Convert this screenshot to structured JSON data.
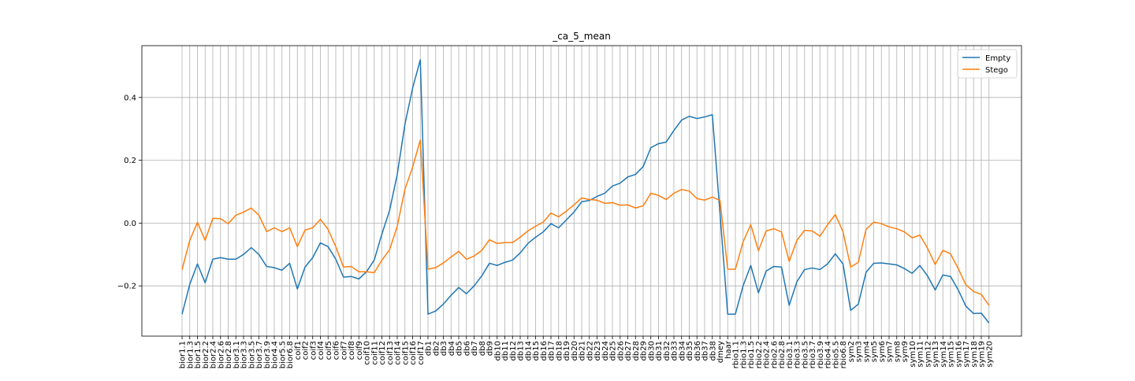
{
  "chart_data": {
    "type": "line",
    "title": "_ca_5_mean",
    "xlabel": "",
    "ylabel": "",
    "ylim": [
      -0.36,
      0.565
    ],
    "yticks": [
      -0.2,
      0.0,
      0.2,
      0.4
    ],
    "ytick_labels": [
      "−0.2",
      "0.0",
      "0.2",
      "0.4"
    ],
    "grid": true,
    "legend_position": "top-right",
    "categories": [
      "bior1.1",
      "bior1.3",
      "bior1.5",
      "bior2.2",
      "bior2.4",
      "bior2.6",
      "bior2.8",
      "bior3.1",
      "bior3.3",
      "bior3.5",
      "bior3.7",
      "bior3.9",
      "bior4.4",
      "bior5.5",
      "bior6.8",
      "coif1",
      "coif2",
      "coif3",
      "coif4",
      "coif5",
      "coif6",
      "coif7",
      "coif8",
      "coif9",
      "coif10",
      "coif11",
      "coif12",
      "coif13",
      "coif14",
      "coif15",
      "coif16",
      "coif17",
      "db1",
      "db2",
      "db3",
      "db4",
      "db5",
      "db6",
      "db7",
      "db8",
      "db9",
      "db10",
      "db11",
      "db12",
      "db13",
      "db14",
      "db15",
      "db16",
      "db17",
      "db18",
      "db19",
      "db20",
      "db21",
      "db22",
      "db23",
      "db24",
      "db25",
      "db26",
      "db27",
      "db28",
      "db29",
      "db30",
      "db31",
      "db32",
      "db33",
      "db34",
      "db35",
      "db36",
      "db37",
      "db38",
      "dmey",
      "haar",
      "rbio1.1",
      "rbio1.3",
      "rbio1.5",
      "rbio2.2",
      "rbio2.4",
      "rbio2.6",
      "rbio2.8",
      "rbio3.1",
      "rbio3.3",
      "rbio3.5",
      "rbio3.7",
      "rbio3.9",
      "rbio4.4",
      "rbio5.5",
      "rbio6.8",
      "sym2",
      "sym3",
      "sym4",
      "sym5",
      "sym6",
      "sym7",
      "sym8",
      "sym9",
      "sym10",
      "sym11",
      "sym12",
      "sym13",
      "sym14",
      "sym15",
      "sym16",
      "sym17",
      "sym18",
      "sym19",
      "sym20"
    ],
    "series": [
      {
        "name": "Empty",
        "color": "#1f77b4",
        "values": [
          -0.29,
          -0.195,
          -0.13,
          -0.19,
          -0.115,
          -0.11,
          -0.115,
          -0.115,
          -0.1,
          -0.078,
          -0.1,
          -0.138,
          -0.142,
          -0.15,
          -0.128,
          -0.21,
          -0.14,
          -0.11,
          -0.063,
          -0.075,
          -0.115,
          -0.172,
          -0.17,
          -0.178,
          -0.155,
          -0.118,
          -0.035,
          0.04,
          0.155,
          0.315,
          0.43,
          0.52,
          -0.29,
          -0.28,
          -0.258,
          -0.23,
          -0.205,
          -0.225,
          -0.2,
          -0.168,
          -0.128,
          -0.135,
          -0.125,
          -0.118,
          -0.095,
          -0.065,
          -0.045,
          -0.028,
          -0.002,
          -0.015,
          0.01,
          0.035,
          0.068,
          0.072,
          0.085,
          0.095,
          0.118,
          0.127,
          0.147,
          0.155,
          0.18,
          0.24,
          0.253,
          0.258,
          0.295,
          0.328,
          0.34,
          0.333,
          0.338,
          0.345,
          0.03,
          -0.29,
          -0.29,
          -0.2,
          -0.135,
          -0.222,
          -0.153,
          -0.138,
          -0.14,
          -0.262,
          -0.187,
          -0.148,
          -0.143,
          -0.148,
          -0.13,
          -0.098,
          -0.13,
          -0.278,
          -0.258,
          -0.157,
          -0.128,
          -0.127,
          -0.13,
          -0.133,
          -0.145,
          -0.16,
          -0.135,
          -0.168,
          -0.213,
          -0.165,
          -0.17,
          -0.213,
          -0.265,
          -0.288,
          -0.287,
          -0.318
        ]
      },
      {
        "name": "Stego",
        "color": "#ff7f0e",
        "values": [
          -0.148,
          -0.055,
          0.002,
          -0.055,
          0.015,
          0.014,
          -0.002,
          0.025,
          0.035,
          0.048,
          0.025,
          -0.027,
          -0.015,
          -0.027,
          -0.015,
          -0.075,
          -0.022,
          -0.015,
          0.012,
          -0.02,
          -0.075,
          -0.14,
          -0.138,
          -0.155,
          -0.155,
          -0.158,
          -0.118,
          -0.085,
          -0.01,
          0.108,
          0.178,
          0.265,
          -0.147,
          -0.142,
          -0.127,
          -0.108,
          -0.09,
          -0.115,
          -0.105,
          -0.087,
          -0.053,
          -0.065,
          -0.062,
          -0.062,
          -0.045,
          -0.025,
          -0.01,
          0.003,
          0.032,
          0.02,
          0.038,
          0.058,
          0.08,
          0.075,
          0.073,
          0.063,
          0.065,
          0.057,
          0.058,
          0.048,
          0.055,
          0.095,
          0.088,
          0.075,
          0.095,
          0.107,
          0.102,
          0.078,
          0.073,
          0.083,
          0.072,
          -0.147,
          -0.147,
          -0.06,
          -0.005,
          -0.088,
          -0.025,
          -0.018,
          -0.028,
          -0.122,
          -0.055,
          -0.023,
          -0.025,
          -0.042,
          -0.005,
          0.027,
          -0.027,
          -0.14,
          -0.125,
          -0.02,
          0.003,
          -0.002,
          -0.012,
          -0.018,
          -0.028,
          -0.047,
          -0.038,
          -0.08,
          -0.132,
          -0.087,
          -0.098,
          -0.145,
          -0.197,
          -0.218,
          -0.227,
          -0.262
        ]
      }
    ]
  }
}
